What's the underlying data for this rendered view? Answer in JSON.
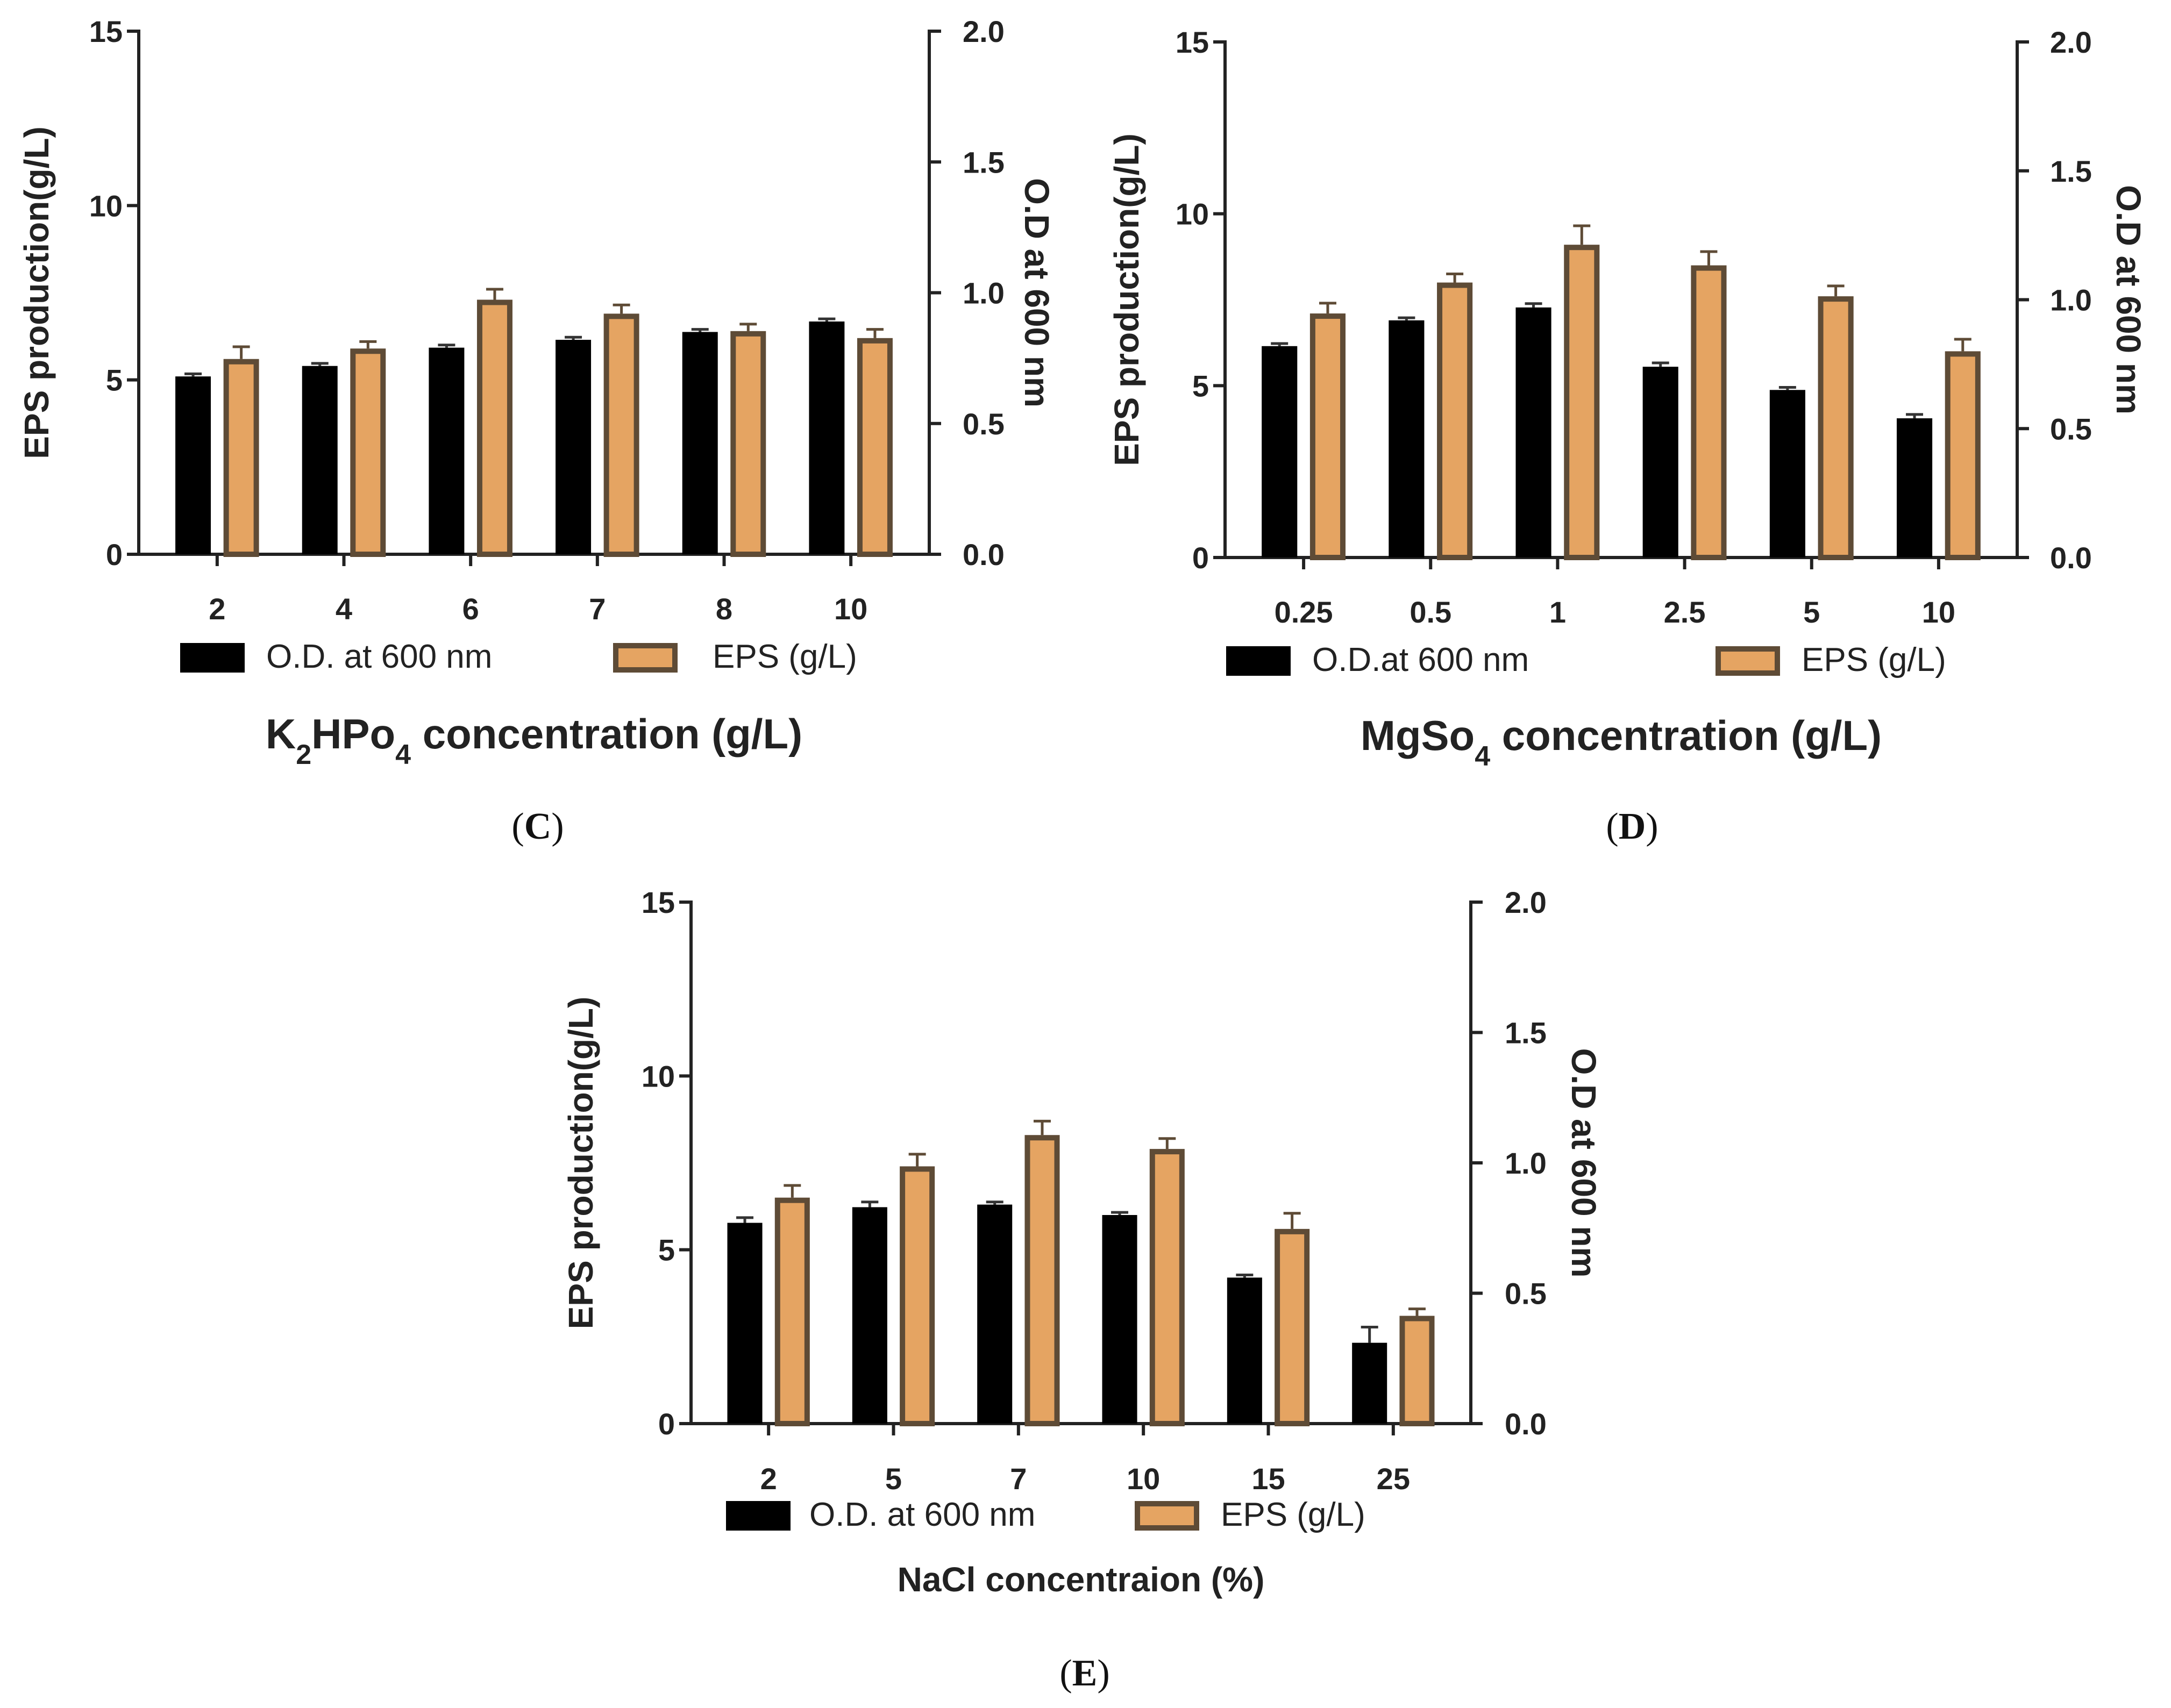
{
  "chart_data": [
    {
      "type": "bar",
      "panel": "C",
      "caption_letter": "C",
      "caption_open": "(",
      "caption_close": ")",
      "categories": [
        "2",
        "4",
        "6",
        "7",
        "8",
        "10"
      ],
      "series": [
        {
          "name": "O.D. at 600 nm",
          "axis": "right",
          "values": [
            0.68,
            0.72,
            0.79,
            0.82,
            0.85,
            0.89
          ],
          "errors": [
            0.01,
            0.01,
            0.01,
            0.01,
            0.01,
            0.01
          ]
        },
        {
          "name": "EPS (g/L)",
          "axis": "left",
          "values": [
            5.6,
            5.9,
            7.3,
            6.9,
            6.4,
            6.2
          ],
          "errors": [
            0.35,
            0.2,
            0.3,
            0.25,
            0.2,
            0.25
          ]
        }
      ],
      "xlabel_parts": [
        "K",
        "2",
        "HPo",
        "4",
        " concentration (g/L)"
      ],
      "ylabel": "EPS production(g/L)",
      "y2label": "O.D at 600 nm",
      "ylim": [
        0,
        15
      ],
      "y2lim": [
        0,
        2
      ],
      "yticks": [
        "0",
        "5",
        "10",
        "15"
      ],
      "y2ticks": [
        "0.0",
        "0.5",
        "1.0",
        "1.5",
        "2.0"
      ],
      "legend": [
        "O.D. at 600 nm",
        "EPS (g/L)"
      ]
    },
    {
      "type": "bar",
      "panel": "D",
      "caption_letter": "D",
      "caption_open": "(",
      "caption_close": ")",
      "categories": [
        "0.25",
        "0.5",
        "1",
        "2.5",
        "5",
        "10"
      ],
      "series": [
        {
          "name": "O.D.at 600 nm",
          "axis": "right",
          "values": [
            0.82,
            0.92,
            0.97,
            0.74,
            0.65,
            0.54
          ],
          "errors": [
            0.01,
            0.01,
            0.015,
            0.015,
            0.01,
            0.015
          ]
        },
        {
          "name": "EPS (g/L)",
          "axis": "left",
          "values": [
            7.1,
            8.0,
            9.1,
            8.5,
            7.6,
            6.0
          ],
          "errors": [
            0.3,
            0.25,
            0.55,
            0.4,
            0.3,
            0.35
          ]
        }
      ],
      "xlabel_parts": [
        "MgSo",
        "4",
        " concentration (g/L)"
      ],
      "ylabel": "EPS production(g/L)",
      "y2label": "O.D at 600 nm",
      "ylim": [
        0,
        15
      ],
      "y2lim": [
        0,
        2
      ],
      "yticks": [
        "0",
        "5",
        "10",
        "15"
      ],
      "y2ticks": [
        "0.0",
        "0.5",
        "1.0",
        "1.5",
        "2.0"
      ],
      "legend": [
        "O.D.at 600 nm",
        "EPS (g/L)"
      ]
    },
    {
      "type": "bar",
      "panel": "E",
      "caption_letter": "E",
      "caption_open": "(",
      "caption_close": ")",
      "categories": [
        "2",
        "5",
        "7",
        "10",
        "15",
        "25"
      ],
      "series": [
        {
          "name": "O.D. at 600 nm",
          "axis": "right",
          "values": [
            0.77,
            0.83,
            0.84,
            0.8,
            0.56,
            0.31
          ],
          "errors": [
            0.02,
            0.02,
            0.01,
            0.01,
            0.01,
            0.06
          ]
        },
        {
          "name": "EPS (g/L)",
          "axis": "left",
          "values": [
            6.5,
            7.4,
            8.3,
            7.9,
            5.6,
            3.1
          ],
          "errors": [
            0.35,
            0.35,
            0.4,
            0.3,
            0.45,
            0.2
          ]
        }
      ],
      "xlabel_parts": [
        "NaCl concentraion (%)"
      ],
      "ylabel": "EPS production(g/L)",
      "y2label": "O.D at 600 nm",
      "ylim": [
        0,
        15
      ],
      "y2lim": [
        0,
        2
      ],
      "yticks": [
        "0",
        "5",
        "10",
        "15"
      ],
      "y2ticks": [
        "0.0",
        "0.5",
        "1.0",
        "1.5",
        "2.0"
      ],
      "legend": [
        "O.D. at 600 nm",
        "EPS (g/L)"
      ]
    }
  ],
  "colors": {
    "od_bar": "#000000",
    "eps_fill": "#E5A462",
    "eps_stroke": "#5E4B36",
    "axis": "#222222"
  }
}
